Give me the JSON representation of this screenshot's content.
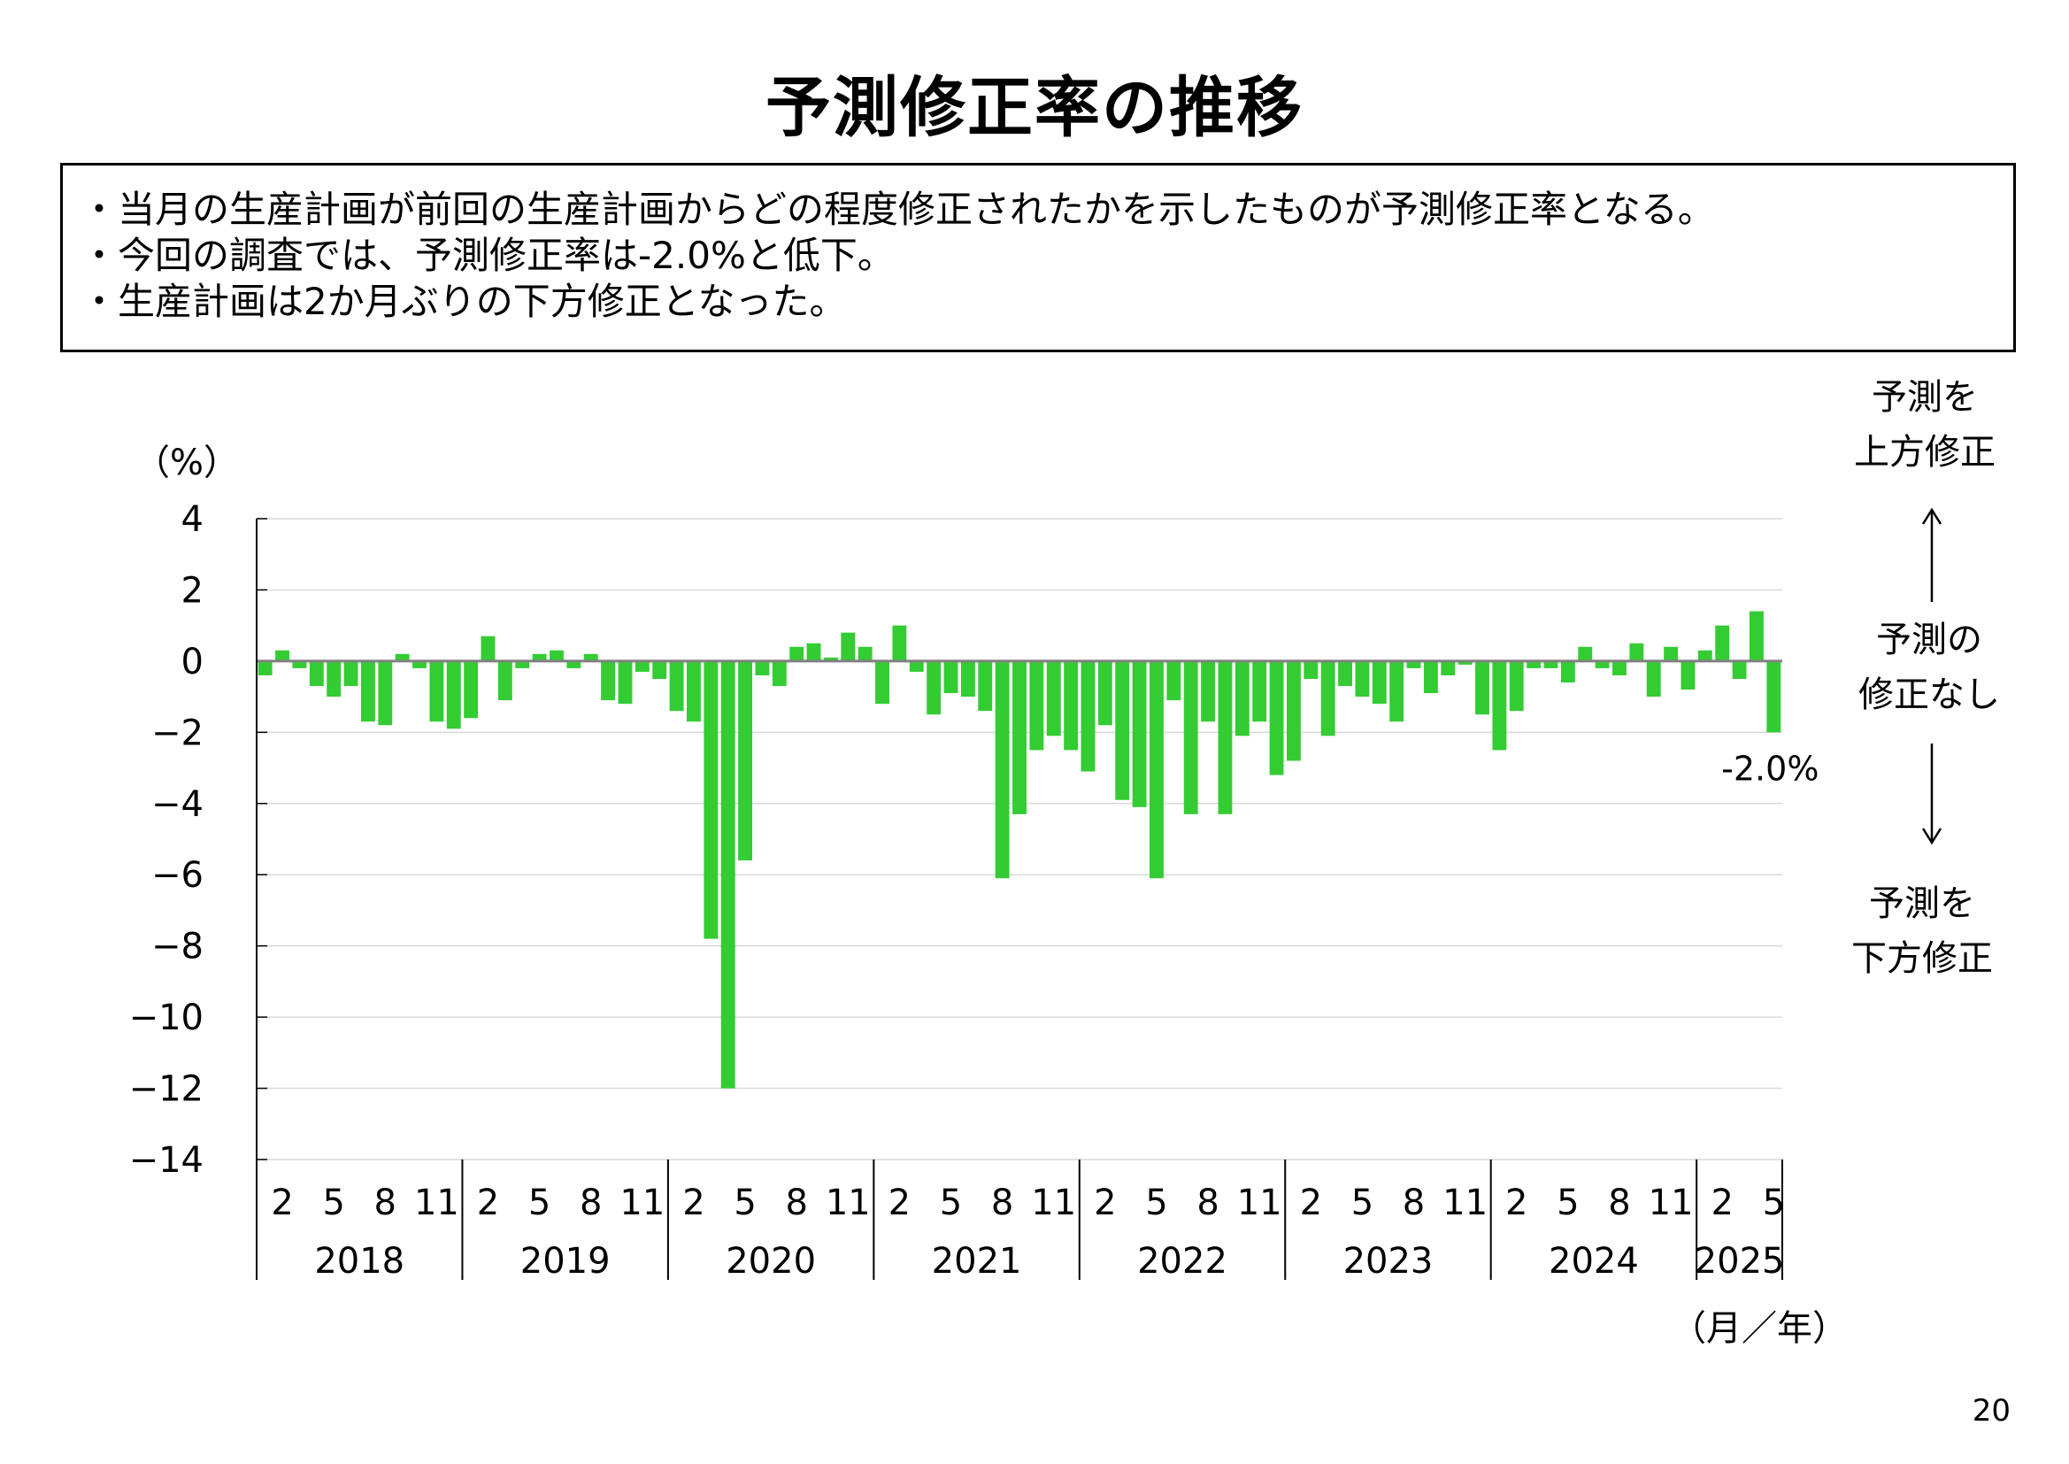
{
  "title": "予測修正率の推移",
  "notes": [
    "・当月の生産計画が前回の生産計画からどの程度修正されたかを示したものが予測修正率となる。",
    "・今回の調査では、予測修正率は-2.0%と低下。",
    "・生産計画は2か月ぶりの下方修正となった。"
  ],
  "side_labels": {
    "up": "予測を\n上方修正",
    "none": "予測の\n修正なし",
    "down": "予測を\n下方修正"
  },
  "page_number": "20",
  "colors": {
    "bar": "#33CC33",
    "zero_line": "#808080",
    "grid": "#D9D9D9",
    "axis": "#000000"
  },
  "chart_data": {
    "type": "bar",
    "ylabel": "（%）",
    "xlabel": "（月／年）",
    "ylim": [
      -14,
      4
    ],
    "yticks": [
      "4",
      "2",
      "0",
      "−2",
      "−4",
      "−6",
      "−8",
      "−10",
      "−12",
      "−14"
    ],
    "ytick_values": [
      4,
      2,
      0,
      -2,
      -4,
      -6,
      -8,
      -10,
      -12,
      -14
    ],
    "grid": true,
    "start": "2018-01",
    "month_tick_labels": [
      "2",
      "5",
      "8",
      "11"
    ],
    "years": [
      "2018",
      "2019",
      "2020",
      "2021",
      "2022",
      "2023",
      "2024",
      "2025"
    ],
    "last_value_label": "-2.0%",
    "values": [
      -0.4,
      0.3,
      -0.2,
      -0.7,
      -1.0,
      -0.7,
      -1.7,
      -1.8,
      0.2,
      -0.2,
      -1.7,
      -1.9,
      -1.6,
      0.7,
      -1.1,
      -0.2,
      0.2,
      0.3,
      -0.2,
      0.2,
      -1.1,
      -1.2,
      -0.3,
      -0.5,
      -1.4,
      -1.7,
      -7.8,
      -12.0,
      -5.6,
      -0.4,
      -0.7,
      0.4,
      0.5,
      0.1,
      0.8,
      0.4,
      -1.2,
      1.0,
      -0.3,
      -1.5,
      -0.9,
      -1.0,
      -1.4,
      -6.1,
      -4.3,
      -2.5,
      -2.1,
      -2.5,
      -3.1,
      -1.8,
      -3.9,
      -4.1,
      -6.1,
      -1.1,
      -4.3,
      -1.7,
      -4.3,
      -2.1,
      -1.7,
      -3.2,
      -2.8,
      -0.5,
      -2.1,
      -0.7,
      -1.0,
      -1.2,
      -1.7,
      -0.2,
      -0.9,
      -0.4,
      -0.1,
      -1.5,
      -2.5,
      -1.4,
      -0.2,
      -0.2,
      -0.6,
      0.4,
      -0.2,
      -0.4,
      0.5,
      -1.0,
      0.4,
      -0.8,
      0.3,
      1.0,
      -0.5,
      1.4,
      -2.0
    ]
  }
}
